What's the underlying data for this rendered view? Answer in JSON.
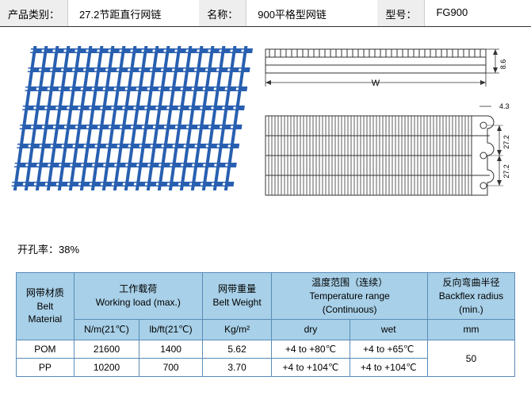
{
  "header": {
    "category_label": "产品类别：",
    "category_value": "27.2节距直行网链",
    "name_label": "名称：",
    "name_value": "900平格型网链",
    "model_label": "型号：",
    "model_value": "FG900"
  },
  "opening_rate": "开孔率：38%",
  "diagrams": {
    "width_label": "W",
    "dim_h1": "8.6",
    "dim_w2": "4.3",
    "dim_p1": "27.2",
    "dim_p2": "27.2"
  },
  "table": {
    "headers": {
      "material": "网带材质\nBelt\nMaterial",
      "load": "工作载荷\nWorking load (max.)",
      "weight": "网带重量\nBelt Weight",
      "temp": "温度范围（连续）\nTemperature range\n(Continuous)",
      "backflex": "反向弯曲半径\nBackflex radius\n(min.)"
    },
    "subheaders": {
      "load_nm": "N/m(21℃)",
      "load_lbft": "lb/ft(21℃)",
      "weight_unit": "Kg/m²",
      "temp_dry": "dry",
      "temp_wet": "wet",
      "backflex_unit": "mm"
    },
    "rows": [
      {
        "material": "POM",
        "nm": "21600",
        "lbft": "1400",
        "kg": "5.62",
        "dry": "+4 to +80℃",
        "wet": "+4 to +65℃"
      },
      {
        "material": "PP",
        "nm": "10200",
        "lbft": "700",
        "kg": "3.70",
        "dry": "+4 to +104℃",
        "wet": "+4 to +104℃"
      }
    ],
    "backflex_value": "50"
  },
  "colors": {
    "product_blue": "#285fb0",
    "header_bg": "#eeeeee",
    "table_header_bg": "#a8d0e8",
    "table_border": "#5a8cb8"
  }
}
